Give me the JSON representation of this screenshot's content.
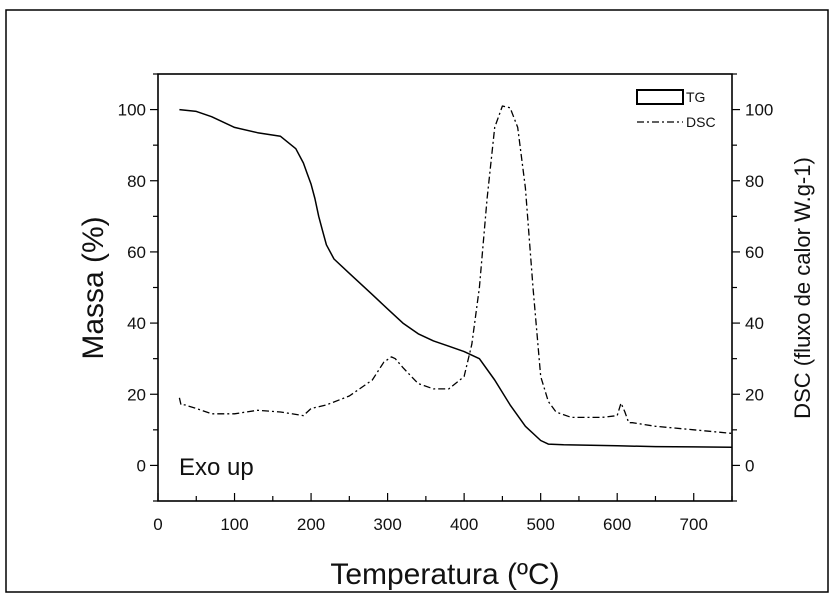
{
  "chart_data": {
    "type": "line",
    "xlabel": "Temperatura (ºC)",
    "ylabel_left": "Massa (%)",
    "ylabel_right": "DSC (fluxo de calor W.g-1)",
    "annotation": "Exo up",
    "xlim": [
      0,
      750
    ],
    "ylim_left": [
      -10,
      110
    ],
    "ylim_right": [
      -10,
      110
    ],
    "x_ticks": [
      "0",
      "100",
      "200",
      "300",
      "400",
      "500",
      "600",
      "700"
    ],
    "y_left_ticks": [
      "0",
      "20",
      "40",
      "60",
      "80",
      "100"
    ],
    "y_right_ticks": [
      "0",
      "20",
      "40",
      "60",
      "80",
      "100"
    ],
    "legend": {
      "placement": "top-right",
      "entries": [
        "TG",
        "DSC"
      ]
    },
    "series": [
      {
        "name": "TG",
        "axis": "left",
        "style": "solid",
        "x": [
          28,
          50,
          70,
          100,
          130,
          160,
          180,
          190,
          195,
          200,
          205,
          210,
          215,
          220,
          230,
          250,
          280,
          300,
          320,
          340,
          360,
          380,
          400,
          420,
          440,
          460,
          480,
          500,
          510,
          530,
          600,
          650,
          700,
          750
        ],
        "y": [
          100,
          99.5,
          98,
          95,
          93.5,
          92.5,
          89,
          85,
          82,
          79,
          75,
          70,
          66,
          62,
          58,
          54,
          48,
          44,
          40,
          37,
          35,
          33.5,
          32,
          30,
          24,
          17,
          11,
          7,
          6,
          5.8,
          5.5,
          5.3,
          5.2,
          5.1
        ]
      },
      {
        "name": "DSC",
        "axis": "right",
        "style": "dash-dot",
        "x": [
          28,
          30,
          35,
          50,
          70,
          100,
          130,
          160,
          190,
          200,
          220,
          250,
          280,
          295,
          305,
          310,
          320,
          340,
          360,
          380,
          400,
          410,
          420,
          430,
          440,
          450,
          460,
          470,
          480,
          490,
          500,
          510,
          520,
          540,
          560,
          580,
          600,
          605,
          610,
          615,
          620,
          650,
          700,
          750
        ],
        "y": [
          19,
          17,
          17,
          16,
          14.5,
          14.5,
          15.5,
          15,
          14,
          16,
          17,
          19.5,
          24,
          29,
          30.5,
          30,
          27.5,
          23,
          21.5,
          21.5,
          25,
          34,
          50,
          75,
          95,
          101,
          100.5,
          95,
          78,
          50,
          25,
          18,
          15,
          13.5,
          13.5,
          13.5,
          14,
          17.5,
          15,
          12,
          12,
          11,
          10,
          9
        ]
      }
    ]
  }
}
